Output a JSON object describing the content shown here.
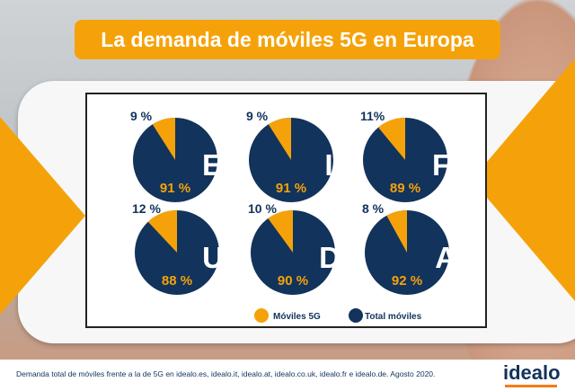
{
  "title": "La demanda de móviles 5G en Europa",
  "colors": {
    "orange": "#f5a20a",
    "navy": "#12335b"
  },
  "chart_data": {
    "type": "pie",
    "legend": {
      "placement": "bottom",
      "entries": [
        "Móviles 5G",
        "Total móviles"
      ]
    },
    "charts": [
      {
        "country": "ES",
        "series": [
          {
            "name": "Móviles 5G",
            "value": 9,
            "label": "9 %"
          },
          {
            "name": "Total móviles",
            "value": 91,
            "label": "91 %"
          }
        ]
      },
      {
        "country": "IT",
        "series": [
          {
            "name": "Móviles 5G",
            "value": 9,
            "label": "9 %"
          },
          {
            "name": "Total móviles",
            "value": 91,
            "label": "91 %"
          }
        ]
      },
      {
        "country": "FR",
        "series": [
          {
            "name": "Móviles 5G",
            "value": 11,
            "label": "11%"
          },
          {
            "name": "Total móviles",
            "value": 89,
            "label": "89 %"
          }
        ]
      },
      {
        "country": "UK",
        "series": [
          {
            "name": "Móviles 5G",
            "value": 12,
            "label": "12 %"
          },
          {
            "name": "Total móviles",
            "value": 88,
            "label": "88 %"
          }
        ]
      },
      {
        "country": "DE",
        "series": [
          {
            "name": "Móviles 5G",
            "value": 10,
            "label": "10 %"
          },
          {
            "name": "Total móviles",
            "value": 90,
            "label": "90 %"
          }
        ]
      },
      {
        "country": "AT",
        "series": [
          {
            "name": "Móviles 5G",
            "value": 8,
            "label": "8 %"
          },
          {
            "name": "Total móviles",
            "value": 92,
            "label": "92 %"
          }
        ]
      }
    ]
  },
  "footer": "Demanda total de móviles frente a la de 5G en idealo.es, idealo.it, idealo.at, idealo.co.uk, idealo.fr e idealo.de. Agosto 2020.",
  "logo": "idealo"
}
